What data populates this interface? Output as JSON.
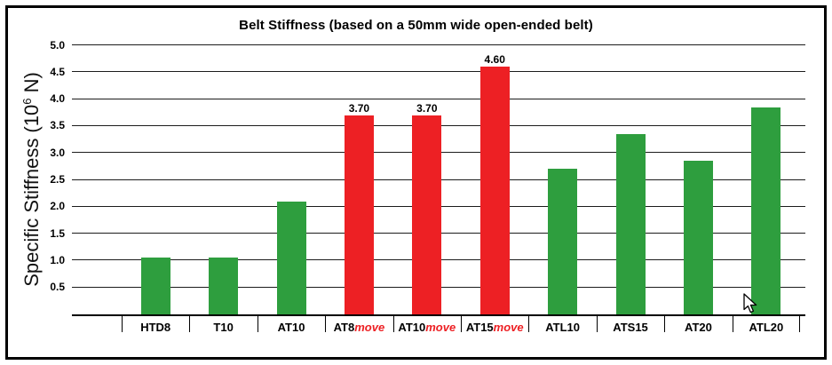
{
  "chart_data": {
    "type": "bar",
    "title": "Belt Stiffness (based on a 50mm wide open-ended belt)",
    "ylabel": "Specific Stiffness (10^6 N)",
    "ylabel_parts": {
      "pre": "Specific Stiffness (10",
      "exp": "6",
      "post": " N)"
    },
    "ylim": [
      0,
      5.0
    ],
    "yticks": [
      0.5,
      1.0,
      1.5,
      2.0,
      2.5,
      3.0,
      3.5,
      4.0,
      4.5,
      5.0
    ],
    "grid": "horizontal",
    "legend": "none",
    "categories": [
      "HTD8",
      "T10",
      "AT10",
      "AT8move",
      "AT10move",
      "AT15move",
      "ATL10",
      "ATS15",
      "AT20",
      "ATL20"
    ],
    "bars": [
      {
        "name": "HTD8",
        "suffix": "",
        "value": 1.05,
        "color": "green",
        "value_label": ""
      },
      {
        "name": "T10",
        "suffix": "",
        "value": 1.05,
        "color": "green",
        "value_label": ""
      },
      {
        "name": "AT10",
        "suffix": "",
        "value": 2.1,
        "color": "green",
        "value_label": ""
      },
      {
        "name": "AT8",
        "suffix": "move",
        "value": 3.7,
        "color": "red",
        "value_label": "3.70"
      },
      {
        "name": "AT10",
        "suffix": "move",
        "value": 3.7,
        "color": "red",
        "value_label": "3.70"
      },
      {
        "name": "AT15",
        "suffix": "move",
        "value": 4.6,
        "color": "red",
        "value_label": "4.60"
      },
      {
        "name": "ATL10",
        "suffix": "",
        "value": 2.7,
        "color": "green",
        "value_label": ""
      },
      {
        "name": "ATS15",
        "suffix": "",
        "value": 3.35,
        "color": "green",
        "value_label": ""
      },
      {
        "name": "AT20",
        "suffix": "",
        "value": 2.85,
        "color": "green",
        "value_label": ""
      },
      {
        "name": "ATL20",
        "suffix": "",
        "value": 3.85,
        "color": "green",
        "value_label": ""
      }
    ],
    "colors": {
      "green": "#2e9e3e",
      "red": "#ed2024",
      "axis": "#000000"
    }
  },
  "icons": {
    "mouse_cursor": "arrow-pointer"
  }
}
